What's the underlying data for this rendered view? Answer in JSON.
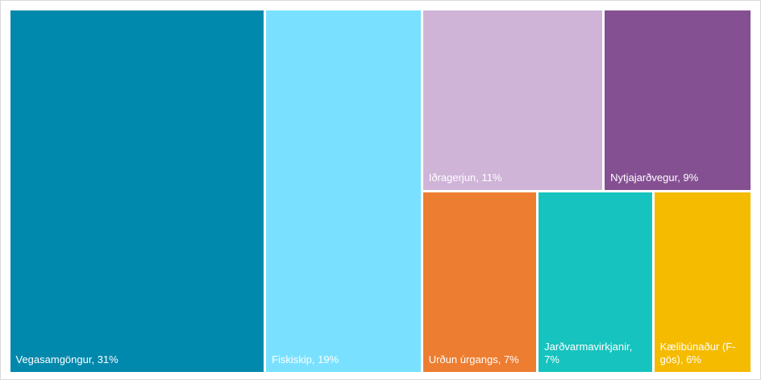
{
  "chart_data": {
    "type": "treemap",
    "title": "",
    "items": [
      {
        "label": "Vegasamgöngur, 31%",
        "name": "Vegasamgöngur",
        "value": 31,
        "color": "#0088ad"
      },
      {
        "label": "Fiskiskip, 19%",
        "name": "Fiskiskip",
        "value": 19,
        "color": "#79e1ff"
      },
      {
        "label": "Iðragerjun, 11%",
        "name": "Iðragerjun",
        "value": 11,
        "color": "#cfb4d8"
      },
      {
        "label": "Nytjajarðvegur, 9%",
        "name": "Nytjajarðvegur",
        "value": 9,
        "color": "#845092"
      },
      {
        "label": "Urðun úrgangs, 7%",
        "name": "Urðun úrgangs",
        "value": 7,
        "color": "#ed7d31"
      },
      {
        "label": "Jarðvarmavirkjanir, 7%",
        "name": "Jarðvarmavirkjanir",
        "value": 7,
        "color": "#17c3be"
      },
      {
        "label": "Kælibúnaður (F-gös), 6%",
        "name": "Kælibúnaður (F-gös)",
        "value": 6,
        "color": "#f5bb00"
      }
    ]
  }
}
